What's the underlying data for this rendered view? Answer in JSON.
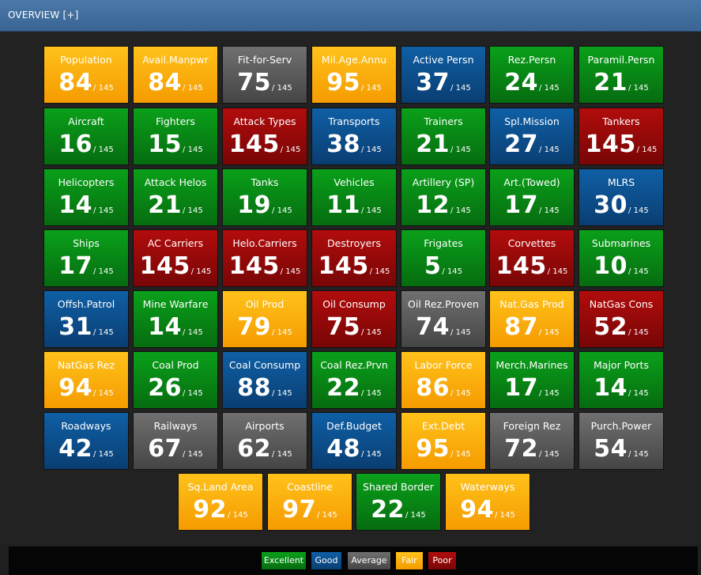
{
  "header": {
    "title": "OVERVIEW [+]"
  },
  "tiles": [
    {
      "label": "Population",
      "value": "84",
      "of": "/ 145",
      "status": "fair"
    },
    {
      "label": "Avail.Manpwr",
      "value": "84",
      "of": "/ 145",
      "status": "fair"
    },
    {
      "label": "Fit-for-Serv",
      "value": "75",
      "of": "/ 145",
      "status": "average"
    },
    {
      "label": "Mil.Age.Annu",
      "value": "95",
      "of": "/ 145",
      "status": "fair"
    },
    {
      "label": "Active Persn",
      "value": "37",
      "of": "/ 145",
      "status": "good"
    },
    {
      "label": "Rez.Persn",
      "value": "24",
      "of": "/ 145",
      "status": "excellent"
    },
    {
      "label": "Paramil.Persn",
      "value": "21",
      "of": "/ 145",
      "status": "excellent"
    },
    {
      "label": "Aircraft",
      "value": "16",
      "of": "/ 145",
      "status": "excellent"
    },
    {
      "label": "Fighters",
      "value": "15",
      "of": "/ 145",
      "status": "excellent"
    },
    {
      "label": "Attack Types",
      "value": "145",
      "of": "/ 145",
      "status": "poor"
    },
    {
      "label": "Transports",
      "value": "38",
      "of": "/ 145",
      "status": "good"
    },
    {
      "label": "Trainers",
      "value": "21",
      "of": "/ 145",
      "status": "excellent"
    },
    {
      "label": "Spl.Mission",
      "value": "27",
      "of": "/ 145",
      "status": "good"
    },
    {
      "label": "Tankers",
      "value": "145",
      "of": "/ 145",
      "status": "poor"
    },
    {
      "label": "Helicopters",
      "value": "14",
      "of": "/ 145",
      "status": "excellent"
    },
    {
      "label": "Attack Helos",
      "value": "21",
      "of": "/ 145",
      "status": "excellent"
    },
    {
      "label": "Tanks",
      "value": "19",
      "of": "/ 145",
      "status": "excellent"
    },
    {
      "label": "Vehicles",
      "value": "11",
      "of": "/ 145",
      "status": "excellent"
    },
    {
      "label": "Artillery (SP)",
      "value": "12",
      "of": "/ 145",
      "status": "excellent"
    },
    {
      "label": "Art.(Towed)",
      "value": "17",
      "of": "/ 145",
      "status": "excellent"
    },
    {
      "label": "MLRS",
      "value": "30",
      "of": "/ 145",
      "status": "good"
    },
    {
      "label": "Ships",
      "value": "17",
      "of": "/ 145",
      "status": "excellent"
    },
    {
      "label": "AC Carriers",
      "value": "145",
      "of": "/ 145",
      "status": "poor"
    },
    {
      "label": "Helo.Carriers",
      "value": "145",
      "of": "/ 145",
      "status": "poor"
    },
    {
      "label": "Destroyers",
      "value": "145",
      "of": "/ 145",
      "status": "poor"
    },
    {
      "label": "Frigates",
      "value": "5",
      "of": "/ 145",
      "status": "excellent"
    },
    {
      "label": "Corvettes",
      "value": "145",
      "of": "/ 145",
      "status": "poor"
    },
    {
      "label": "Submarines",
      "value": "10",
      "of": "/ 145",
      "status": "excellent"
    },
    {
      "label": "Offsh.Patrol",
      "value": "31",
      "of": "/ 145",
      "status": "good"
    },
    {
      "label": "Mine Warfare",
      "value": "14",
      "of": "/ 145",
      "status": "excellent"
    },
    {
      "label": "Oil Prod",
      "value": "79",
      "of": "/ 145",
      "status": "fair"
    },
    {
      "label": "Oil Consump",
      "value": "75",
      "of": "/ 145",
      "status": "poor"
    },
    {
      "label": "Oil Rez.Proven",
      "value": "74",
      "of": "/ 145",
      "status": "average"
    },
    {
      "label": "Nat.Gas Prod",
      "value": "87",
      "of": "/ 145",
      "status": "fair"
    },
    {
      "label": "NatGas Cons",
      "value": "52",
      "of": "/ 145",
      "status": "poor"
    },
    {
      "label": "NatGas Rez",
      "value": "94",
      "of": "/ 145",
      "status": "fair"
    },
    {
      "label": "Coal Prod",
      "value": "26",
      "of": "/ 145",
      "status": "excellent"
    },
    {
      "label": "Coal Consump",
      "value": "88",
      "of": "/ 145",
      "status": "good"
    },
    {
      "label": "Coal Rez.Prvn",
      "value": "22",
      "of": "/ 145",
      "status": "excellent"
    },
    {
      "label": "Labor Force",
      "value": "86",
      "of": "/ 145",
      "status": "fair"
    },
    {
      "label": "Merch.Marines",
      "value": "17",
      "of": "/ 145",
      "status": "excellent"
    },
    {
      "label": "Major Ports",
      "value": "14",
      "of": "/ 145",
      "status": "excellent"
    },
    {
      "label": "Roadways",
      "value": "42",
      "of": "/ 145",
      "status": "good"
    },
    {
      "label": "Railways",
      "value": "67",
      "of": "/ 145",
      "status": "average"
    },
    {
      "label": "Airports",
      "value": "62",
      "of": "/ 145",
      "status": "average"
    },
    {
      "label": "Def.Budget",
      "value": "48",
      "of": "/ 145",
      "status": "good"
    },
    {
      "label": "Ext.Debt",
      "value": "95",
      "of": "/ 145",
      "status": "fair"
    },
    {
      "label": "Foreign Rez",
      "value": "72",
      "of": "/ 145",
      "status": "average"
    },
    {
      "label": "Purch.Power",
      "value": "54",
      "of": "/ 145",
      "status": "average"
    },
    {
      "label": "Sq.Land Area",
      "value": "92",
      "of": "/ 145",
      "status": "fair"
    },
    {
      "label": "Coastline",
      "value": "97",
      "of": "/ 145",
      "status": "fair"
    },
    {
      "label": "Shared Border",
      "value": "22",
      "of": "/ 145",
      "status": "excellent"
    },
    {
      "label": "Waterways",
      "value": "94",
      "of": "/ 145",
      "status": "fair"
    }
  ],
  "legend": [
    {
      "label": "Excellent",
      "status": "excellent"
    },
    {
      "label": "Good",
      "status": "good"
    },
    {
      "label": "Average",
      "status": "average"
    },
    {
      "label": "Fair",
      "status": "fair"
    },
    {
      "label": "Poor",
      "status": "poor"
    }
  ],
  "colors": {
    "excellent": "#0a8a16",
    "good": "#0c4f8c",
    "average": "#5a5a5a",
    "fair": "#fbb00d",
    "poor": "#960a0a",
    "header": "#3f6d9e"
  }
}
